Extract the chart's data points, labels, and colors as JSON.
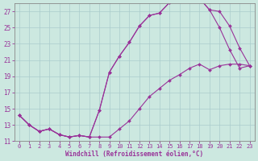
{
  "xlabel": "Windchill (Refroidissement éolien,°C)",
  "bg_color": "#cce8e0",
  "grid_color": "#aacccc",
  "line_color": "#993399",
  "xlim": [
    -0.5,
    23.5
  ],
  "ylim": [
    11,
    28
  ],
  "xticks": [
    0,
    1,
    2,
    3,
    4,
    5,
    6,
    7,
    8,
    9,
    10,
    11,
    12,
    13,
    14,
    15,
    16,
    17,
    18,
    19,
    20,
    21,
    22,
    23
  ],
  "yticks": [
    11,
    13,
    15,
    17,
    19,
    21,
    23,
    25,
    27
  ],
  "curve1_x": [
    0,
    1,
    2,
    3,
    4,
    5,
    6,
    7,
    8,
    9,
    10,
    11,
    12,
    13,
    14,
    15,
    16,
    17,
    18,
    19,
    20,
    21,
    22,
    23
  ],
  "curve1_y": [
    14.2,
    13.0,
    12.2,
    12.5,
    11.8,
    11.5,
    11.7,
    11.5,
    14.8,
    19.5,
    21.5,
    23.2,
    25.2,
    26.5,
    26.8,
    28.1,
    28.3,
    28.4,
    28.6,
    27.2,
    27.0,
    25.2,
    22.5,
    20.3
  ],
  "curve2_x": [
    0,
    1,
    2,
    3,
    4,
    5,
    6,
    7,
    8,
    9,
    10,
    11,
    12,
    13,
    14,
    15,
    16,
    17,
    18,
    19,
    20,
    21,
    22,
    23
  ],
  "curve2_y": [
    14.2,
    13.0,
    12.2,
    12.5,
    11.8,
    11.5,
    11.7,
    11.5,
    14.8,
    19.5,
    21.5,
    23.2,
    25.2,
    26.5,
    26.8,
    28.1,
    28.3,
    28.4,
    28.6,
    27.2,
    25.0,
    22.3,
    20.0,
    20.3
  ],
  "curve3_x": [
    0,
    1,
    2,
    3,
    4,
    5,
    6,
    7,
    8,
    9,
    10,
    11,
    12,
    13,
    14,
    15,
    16,
    17,
    18,
    19,
    20,
    21,
    22,
    23
  ],
  "curve3_y": [
    14.2,
    13.0,
    12.2,
    12.5,
    11.8,
    11.5,
    11.7,
    11.5,
    11.5,
    11.5,
    12.5,
    13.5,
    15.0,
    16.5,
    17.5,
    18.5,
    19.2,
    20.0,
    20.5,
    19.8,
    20.3,
    20.5,
    20.5,
    20.3
  ]
}
